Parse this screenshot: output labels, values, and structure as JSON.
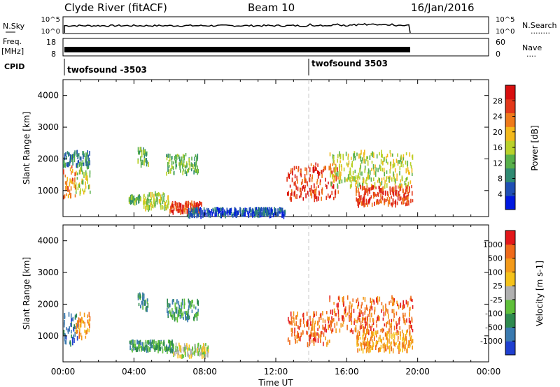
{
  "header": {
    "station": "Clyde River (fitACF)",
    "beam": "Beam 10",
    "date": "16/Jan/2016"
  },
  "labels": {
    "nsky": "N.Sky",
    "nsearch": "N.Search",
    "nsearch_dots": "........",
    "freq": "Freq.",
    "mhz": "[MHz]",
    "nave": "Nave",
    "nave_dots": "....",
    "cpid": "CPID",
    "xlabel": "Time UT"
  },
  "noise_panel": {
    "left_ticks": [
      "10^5",
      "10^0"
    ],
    "right_ticks": [
      "10^5",
      "10^0"
    ]
  },
  "freq_panel": {
    "left_ticks": [
      "18",
      "8"
    ],
    "right_ticks": [
      "60",
      "0"
    ]
  },
  "cpid_panel": {
    "programs": [
      {
        "name": "twofsound -3503",
        "start_hour": 0.0
      },
      {
        "name": "twofsound 3503",
        "start_hour": 14.0
      }
    ]
  },
  "chart_data": [
    {
      "type": "heatmap",
      "name": "power",
      "ylabel": "Slant Range [km]",
      "xlabel": "",
      "xlim": [
        0,
        24
      ],
      "ylim": [
        180,
        4500
      ],
      "yticks": [
        1000,
        2000,
        3000,
        4000
      ],
      "xticks": [
        "00:00",
        "04:00",
        "08:00",
        "12:00",
        "16:00",
        "20:00",
        "00:00"
      ],
      "colorbar": {
        "label": "Power [dB]",
        "ticks": [
          "4",
          "8",
          "12",
          "16",
          "20",
          "24",
          "28"
        ],
        "colors": [
          "#0018e0",
          "#1f4fb4",
          "#2f8a72",
          "#58b04a",
          "#b9d12a",
          "#f3b91c",
          "#ef7a1a",
          "#e3381a",
          "#d80f0f"
        ]
      },
      "regions": [
        {
          "t0": 0.0,
          "t1": 0.7,
          "r0": 700,
          "r1": 1750,
          "level": 6
        },
        {
          "t0": 0.7,
          "t1": 1.5,
          "r0": 900,
          "r1": 1750,
          "level": 4
        },
        {
          "t0": 0.0,
          "t1": 1.5,
          "r0": 1750,
          "r1": 2200,
          "level": 2
        },
        {
          "t0": 3.7,
          "t1": 4.4,
          "r0": 600,
          "r1": 800,
          "level": 3
        },
        {
          "t0": 4.5,
          "t1": 6.0,
          "r0": 400,
          "r1": 900,
          "level": 4
        },
        {
          "t0": 6.0,
          "t1": 7.8,
          "r0": 300,
          "r1": 600,
          "level": 7
        },
        {
          "t0": 4.2,
          "t1": 4.8,
          "r0": 1800,
          "r1": 2300,
          "level": 3
        },
        {
          "t0": 5.8,
          "t1": 7.6,
          "r0": 1500,
          "r1": 2100,
          "level": 3
        },
        {
          "t0": 7.0,
          "t1": 12.5,
          "r0": 180,
          "r1": 400,
          "level": 1
        },
        {
          "t0": 12.6,
          "t1": 15.5,
          "r0": 700,
          "r1": 1800,
          "level": 7
        },
        {
          "t0": 15.0,
          "t1": 19.7,
          "r0": 1100,
          "r1": 2200,
          "level": 4
        },
        {
          "t0": 16.5,
          "t1": 19.7,
          "r0": 500,
          "r1": 1100,
          "level": 7
        }
      ]
    },
    {
      "type": "heatmap",
      "name": "velocity",
      "ylabel": "Slant Range [km]",
      "xlabel": "Time UT",
      "xlim": [
        0,
        24
      ],
      "ylim": [
        180,
        4500
      ],
      "yticks": [
        1000,
        2000,
        3000,
        4000
      ],
      "xticks": [
        "00:00",
        "04:00",
        "08:00",
        "12:00",
        "16:00",
        "20:00",
        "00:00"
      ],
      "colorbar": {
        "label": "Velocity [m s-1]",
        "ticks": [
          "1000",
          "500",
          "100",
          "25",
          "-25",
          "-100",
          "-500",
          "-1000"
        ],
        "colors": [
          "#1f3fd0",
          "#3a7ab0",
          "#2e8a4f",
          "#5fbf3a",
          "#b0b0b0",
          "#f5c21a",
          "#f39a1a",
          "#ef6a1a",
          "#e3171a"
        ]
      },
      "regions": [
        {
          "t0": 0.0,
          "t1": 0.8,
          "r0": 700,
          "r1": 1700,
          "level": 1
        },
        {
          "t0": 0.7,
          "t1": 1.5,
          "r0": 900,
          "r1": 1700,
          "level": 6
        },
        {
          "t0": 3.7,
          "t1": 6.2,
          "r0": 500,
          "r1": 800,
          "level": 2
        },
        {
          "t0": 6.2,
          "t1": 8.2,
          "r0": 300,
          "r1": 700,
          "level": 4
        },
        {
          "t0": 4.2,
          "t1": 4.8,
          "r0": 1800,
          "r1": 2300,
          "level": 2
        },
        {
          "t0": 5.8,
          "t1": 7.6,
          "r0": 1500,
          "r1": 2100,
          "level": 2
        },
        {
          "t0": 12.6,
          "t1": 15.0,
          "r0": 700,
          "r1": 1700,
          "level": 7
        },
        {
          "t0": 15.0,
          "t1": 19.7,
          "r0": 1100,
          "r1": 2200,
          "level": 7
        },
        {
          "t0": 16.5,
          "t1": 19.7,
          "r0": 500,
          "r1": 1100,
          "level": 6
        }
      ]
    }
  ]
}
